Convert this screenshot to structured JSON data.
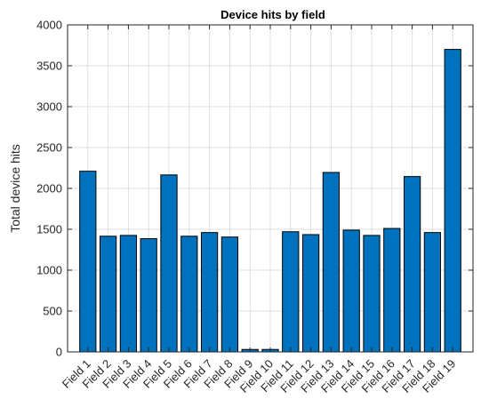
{
  "chart_data": {
    "type": "bar",
    "title": "Device hits by field",
    "xlabel": "",
    "ylabel": "Total device hits",
    "categories": [
      "Field 1",
      "Field 2",
      "Field 3",
      "Field 4",
      "Field 5",
      "Field 6",
      "Field 7",
      "Field 8",
      "Field 9",
      "Field 10",
      "Field 11",
      "Field 12",
      "Field 13",
      "Field 14",
      "Field 15",
      "Field 16",
      "Field 17",
      "Field 18",
      "Field 19"
    ],
    "values": [
      2210,
      1415,
      1425,
      1385,
      2165,
      1415,
      1460,
      1405,
      30,
      30,
      1470,
      1435,
      2195,
      1490,
      1425,
      1510,
      2145,
      1460,
      3700
    ],
    "ylim": [
      0,
      4000
    ],
    "yticks": [
      0,
      500,
      1000,
      1500,
      2000,
      2500,
      3000,
      3500,
      4000
    ],
    "grid": true,
    "bar_color": "#0072BD"
  }
}
